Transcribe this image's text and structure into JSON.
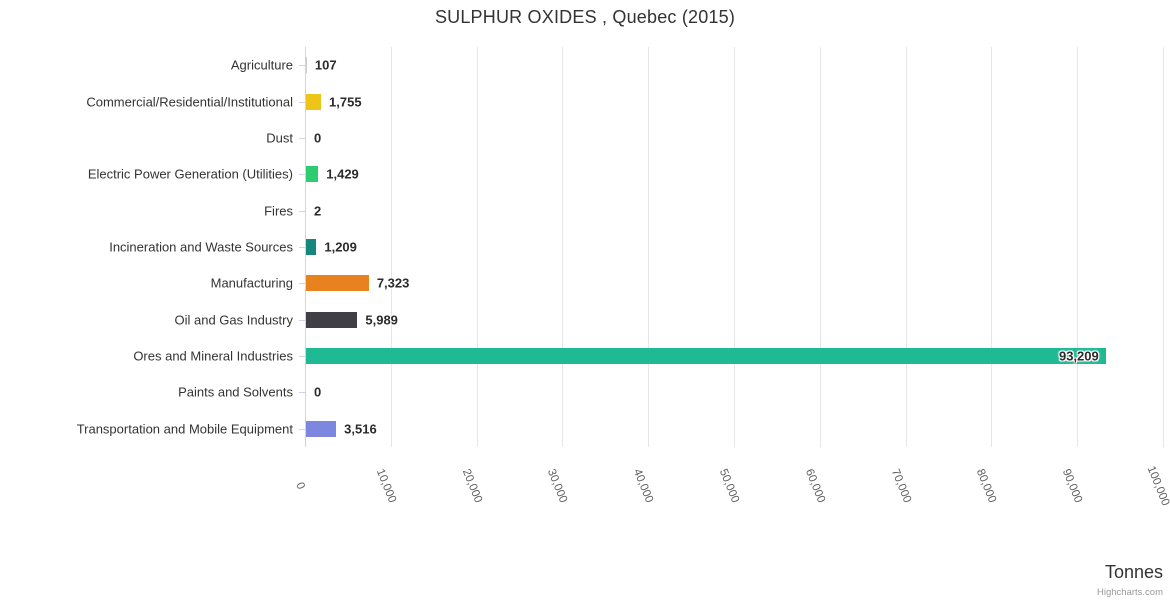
{
  "title": "SULPHUR OXIDES , Quebec (2015)",
  "axis_title": "Tonnes",
  "credits_label": "Highcharts.com",
  "colors": {
    "grid": "#e6e6e6",
    "axis": "#ccd6eb",
    "title_text": "#333333",
    "label_text": "#333333",
    "value_text": "#2b2b2b",
    "tick_text": "#606060",
    "credits_text": "#999999"
  },
  "chart_data": {
    "type": "bar",
    "orientation": "horizontal",
    "title": "SULPHUR OXIDES , Quebec (2015)",
    "xlabel": "Tonnes",
    "ylabel": "",
    "xlim": [
      0,
      100000
    ],
    "grid": true,
    "legend": false,
    "categories": [
      "Agriculture",
      "Commercial/Residential/Institutional",
      "Dust",
      "Electric Power Generation (Utilities)",
      "Fires",
      "Incineration and Waste Sources",
      "Manufacturing",
      "Oil and Gas Industry",
      "Ores and Mineral Industries",
      "Paints and Solvents",
      "Transportation and Mobile Equipment"
    ],
    "values": [
      107,
      1755,
      0,
      1429,
      2,
      1209,
      7323,
      5989,
      93209,
      0,
      3516
    ],
    "value_labels": [
      "107",
      "1,755",
      "0",
      "1,429",
      "2",
      "1,209",
      "7,323",
      "5,989",
      "93,209",
      "0",
      "3,516"
    ],
    "bar_colors": [
      "#cccccc",
      "#edc417",
      "#999999",
      "#2ecc71",
      "#999999",
      "#17867d",
      "#e8821e",
      "#3f3f45",
      "#1fba94",
      "#999999",
      "#7e87e0"
    ],
    "x_ticks": [
      0,
      10000,
      20000,
      30000,
      40000,
      50000,
      60000,
      70000,
      80000,
      90000,
      100000
    ],
    "x_tick_labels": [
      "0",
      "10,000",
      "20,000",
      "30,000",
      "40,000",
      "50,000",
      "60,000",
      "70,000",
      "80,000",
      "90,000",
      "100,000"
    ]
  }
}
